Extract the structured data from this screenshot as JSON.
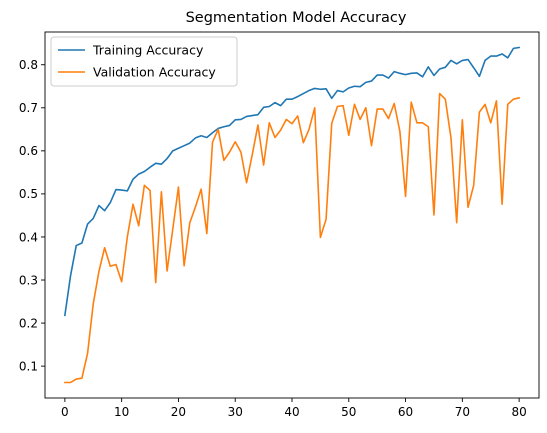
{
  "chart_data": {
    "type": "line",
    "title": "Segmentation Model Accuracy",
    "xlabel": "",
    "ylabel": "",
    "xlim": [
      -3.5,
      83.5
    ],
    "ylim": [
      0.026,
      0.876
    ],
    "xticks": [
      0,
      10,
      20,
      30,
      40,
      50,
      60,
      70,
      80
    ],
    "yticks": [
      0.1,
      0.2,
      0.3,
      0.4,
      0.5,
      0.6,
      0.7,
      0.8
    ],
    "grid": false,
    "legend_position": "upper-left",
    "x": [
      0,
      1,
      2,
      3,
      4,
      5,
      6,
      7,
      8,
      9,
      10,
      11,
      12,
      13,
      14,
      15,
      16,
      17,
      18,
      19,
      20,
      21,
      22,
      23,
      24,
      25,
      26,
      27,
      28,
      29,
      30,
      31,
      32,
      33,
      34,
      35,
      36,
      37,
      38,
      39,
      40,
      41,
      42,
      43,
      44,
      45,
      46,
      47,
      48,
      49,
      50,
      51,
      52,
      53,
      54,
      55,
      56,
      57,
      58,
      59,
      60,
      61,
      62,
      63,
      64,
      65,
      66,
      67,
      68,
      69,
      70,
      71,
      72,
      73,
      74,
      75,
      76,
      77,
      78,
      79,
      80
    ],
    "series": [
      {
        "name": "Training Accuracy",
        "color": "#1f77b4",
        "values": [
          0.218,
          0.31,
          0.38,
          0.386,
          0.43,
          0.443,
          0.473,
          0.461,
          0.48,
          0.51,
          0.509,
          0.507,
          0.534,
          0.546,
          0.552,
          0.562,
          0.571,
          0.569,
          0.582,
          0.6,
          0.606,
          0.612,
          0.618,
          0.63,
          0.635,
          0.631,
          0.642,
          0.652,
          0.656,
          0.659,
          0.672,
          0.673,
          0.68,
          0.682,
          0.684,
          0.701,
          0.703,
          0.712,
          0.705,
          0.72,
          0.72,
          0.726,
          0.733,
          0.74,
          0.745,
          0.743,
          0.744,
          0.722,
          0.74,
          0.737,
          0.746,
          0.75,
          0.749,
          0.759,
          0.762,
          0.776,
          0.776,
          0.769,
          0.784,
          0.78,
          0.777,
          0.78,
          0.781,
          0.772,
          0.795,
          0.775,
          0.79,
          0.794,
          0.81,
          0.802,
          0.81,
          0.812,
          0.793,
          0.773,
          0.81,
          0.82,
          0.82,
          0.825,
          0.816,
          0.838,
          0.84
        ]
      },
      {
        "name": "Validation Accuracy",
        "color": "#ff7f0e",
        "values": [
          0.062,
          0.062,
          0.07,
          0.072,
          0.13,
          0.245,
          0.32,
          0.375,
          0.332,
          0.336,
          0.296,
          0.4,
          0.476,
          0.426,
          0.52,
          0.508,
          0.294,
          0.505,
          0.321,
          0.418,
          0.516,
          0.333,
          0.433,
          0.47,
          0.511,
          0.408,
          0.62,
          0.65,
          0.578,
          0.597,
          0.621,
          0.597,
          0.526,
          0.591,
          0.66,
          0.567,
          0.665,
          0.631,
          0.648,
          0.673,
          0.663,
          0.681,
          0.619,
          0.65,
          0.7,
          0.399,
          0.441,
          0.664,
          0.703,
          0.705,
          0.636,
          0.708,
          0.673,
          0.7,
          0.612,
          0.697,
          0.697,
          0.675,
          0.71,
          0.645,
          0.494,
          0.713,
          0.665,
          0.665,
          0.656,
          0.451,
          0.733,
          0.72,
          0.63,
          0.433,
          0.672,
          0.469,
          0.52,
          0.69,
          0.708,
          0.665,
          0.716,
          0.476,
          0.708,
          0.72,
          0.723
        ]
      }
    ]
  }
}
